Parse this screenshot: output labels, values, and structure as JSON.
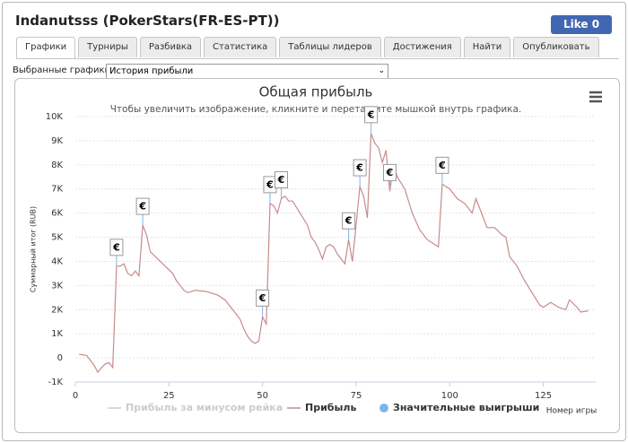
{
  "header": {
    "title": "Indanutsss (PokerStars(FR-ES-PT))",
    "like_button": "Like 0"
  },
  "tabs": [
    "Графики",
    "Турниры",
    "Разбивка",
    "Статистика",
    "Таблицы лидеров",
    "Достижения",
    "Найти",
    "Опубликовать"
  ],
  "active_tab": 0,
  "selector": {
    "label": "Выбранные графики:",
    "value": "История прибыли"
  },
  "chart_data": {
    "type": "line",
    "title": "Общая прибыль",
    "subtitle": "Чтобы увеличить изображение, кликните и перетащите мышкой внутрь графика.",
    "y_label": "Суммарный итог (RUB)",
    "x_label": "Номер игры",
    "xlim": [
      0,
      139
    ],
    "xticks": [
      0,
      25,
      50,
      75,
      100,
      125
    ],
    "ylim": [
      -1000,
      10000
    ],
    "yticks": [
      {
        "value": -1000,
        "label": "-1K"
      },
      0,
      {
        "value": 1000,
        "label": "1K"
      },
      {
        "value": 2000,
        "label": "2K"
      },
      {
        "value": 3000,
        "label": "3K"
      },
      {
        "value": 4000,
        "label": "4K"
      },
      {
        "value": 5000,
        "label": "5K"
      },
      {
        "value": 6000,
        "label": "6K"
      },
      {
        "value": 7000,
        "label": "7K"
      },
      {
        "value": 8000,
        "label": "8K"
      },
      {
        "value": 9000,
        "label": "9K"
      },
      {
        "value": 10000,
        "label": "10K"
      }
    ],
    "grid": true,
    "series": [
      {
        "name": "Прибыль за минусом рейка",
        "color": "#cccccc",
        "hidden": true
      },
      {
        "name": "Прибыль",
        "color": "#c98a8a",
        "x": [
          1,
          3,
          5,
          6,
          7,
          8,
          9,
          10,
          11,
          12,
          13,
          14,
          15,
          16,
          17,
          18,
          19,
          20,
          22,
          24,
          26,
          27,
          28,
          29,
          30,
          32,
          35,
          38,
          40,
          42,
          44,
          45,
          46,
          47,
          48,
          49,
          50,
          51,
          52,
          53,
          54,
          55,
          56,
          57,
          58,
          60,
          62,
          63,
          64,
          65,
          66,
          67,
          68,
          69,
          70,
          71,
          72,
          73,
          74,
          75,
          76,
          77,
          78,
          79,
          80,
          81,
          82,
          83,
          84,
          85,
          86,
          88,
          90,
          92,
          94,
          96,
          97,
          98,
          100,
          102,
          104,
          106,
          107,
          109,
          110,
          112,
          114,
          115,
          116,
          118,
          120,
          122,
          124,
          125,
          127,
          129,
          131,
          132,
          134,
          135,
          137
        ],
        "values": [
          150,
          100,
          -300,
          -600,
          -400,
          -250,
          -200,
          -400,
          3800,
          3800,
          3900,
          3500,
          3400,
          3600,
          3400,
          5500,
          5100,
          4400,
          4100,
          3800,
          3500,
          3200,
          3000,
          2800,
          2700,
          2800,
          2750,
          2600,
          2400,
          2000,
          1600,
          1200,
          900,
          700,
          600,
          700,
          1700,
          1400,
          6400,
          6300,
          6000,
          6600,
          6700,
          6500,
          6500,
          6000,
          5500,
          5000,
          4800,
          4500,
          4100,
          4600,
          4700,
          4600,
          4300,
          4100,
          3900,
          4900,
          4000,
          5500,
          7100,
          6700,
          5800,
          9300,
          8900,
          8700,
          8100,
          8600,
          6900,
          8000,
          7500,
          7000,
          6000,
          5300,
          4900,
          4700,
          4600,
          7200,
          7000,
          6600,
          6400,
          6000,
          6600,
          5800,
          5400,
          5400,
          5100,
          5000,
          4200,
          3800,
          3200,
          2700,
          2200,
          2100,
          2300,
          2100,
          2000,
          2400,
          2100,
          1900,
          1950
        ]
      },
      {
        "name": "Значительные выигрыши",
        "color": "#7cb5ec",
        "flag_label": "€",
        "x": [
          11,
          18,
          50,
          52,
          55,
          73,
          76,
          79,
          84,
          98
        ],
        "values": [
          3800,
          5500,
          1700,
          6400,
          6600,
          4900,
          7100,
          9300,
          6900,
          7200
        ]
      }
    ]
  }
}
